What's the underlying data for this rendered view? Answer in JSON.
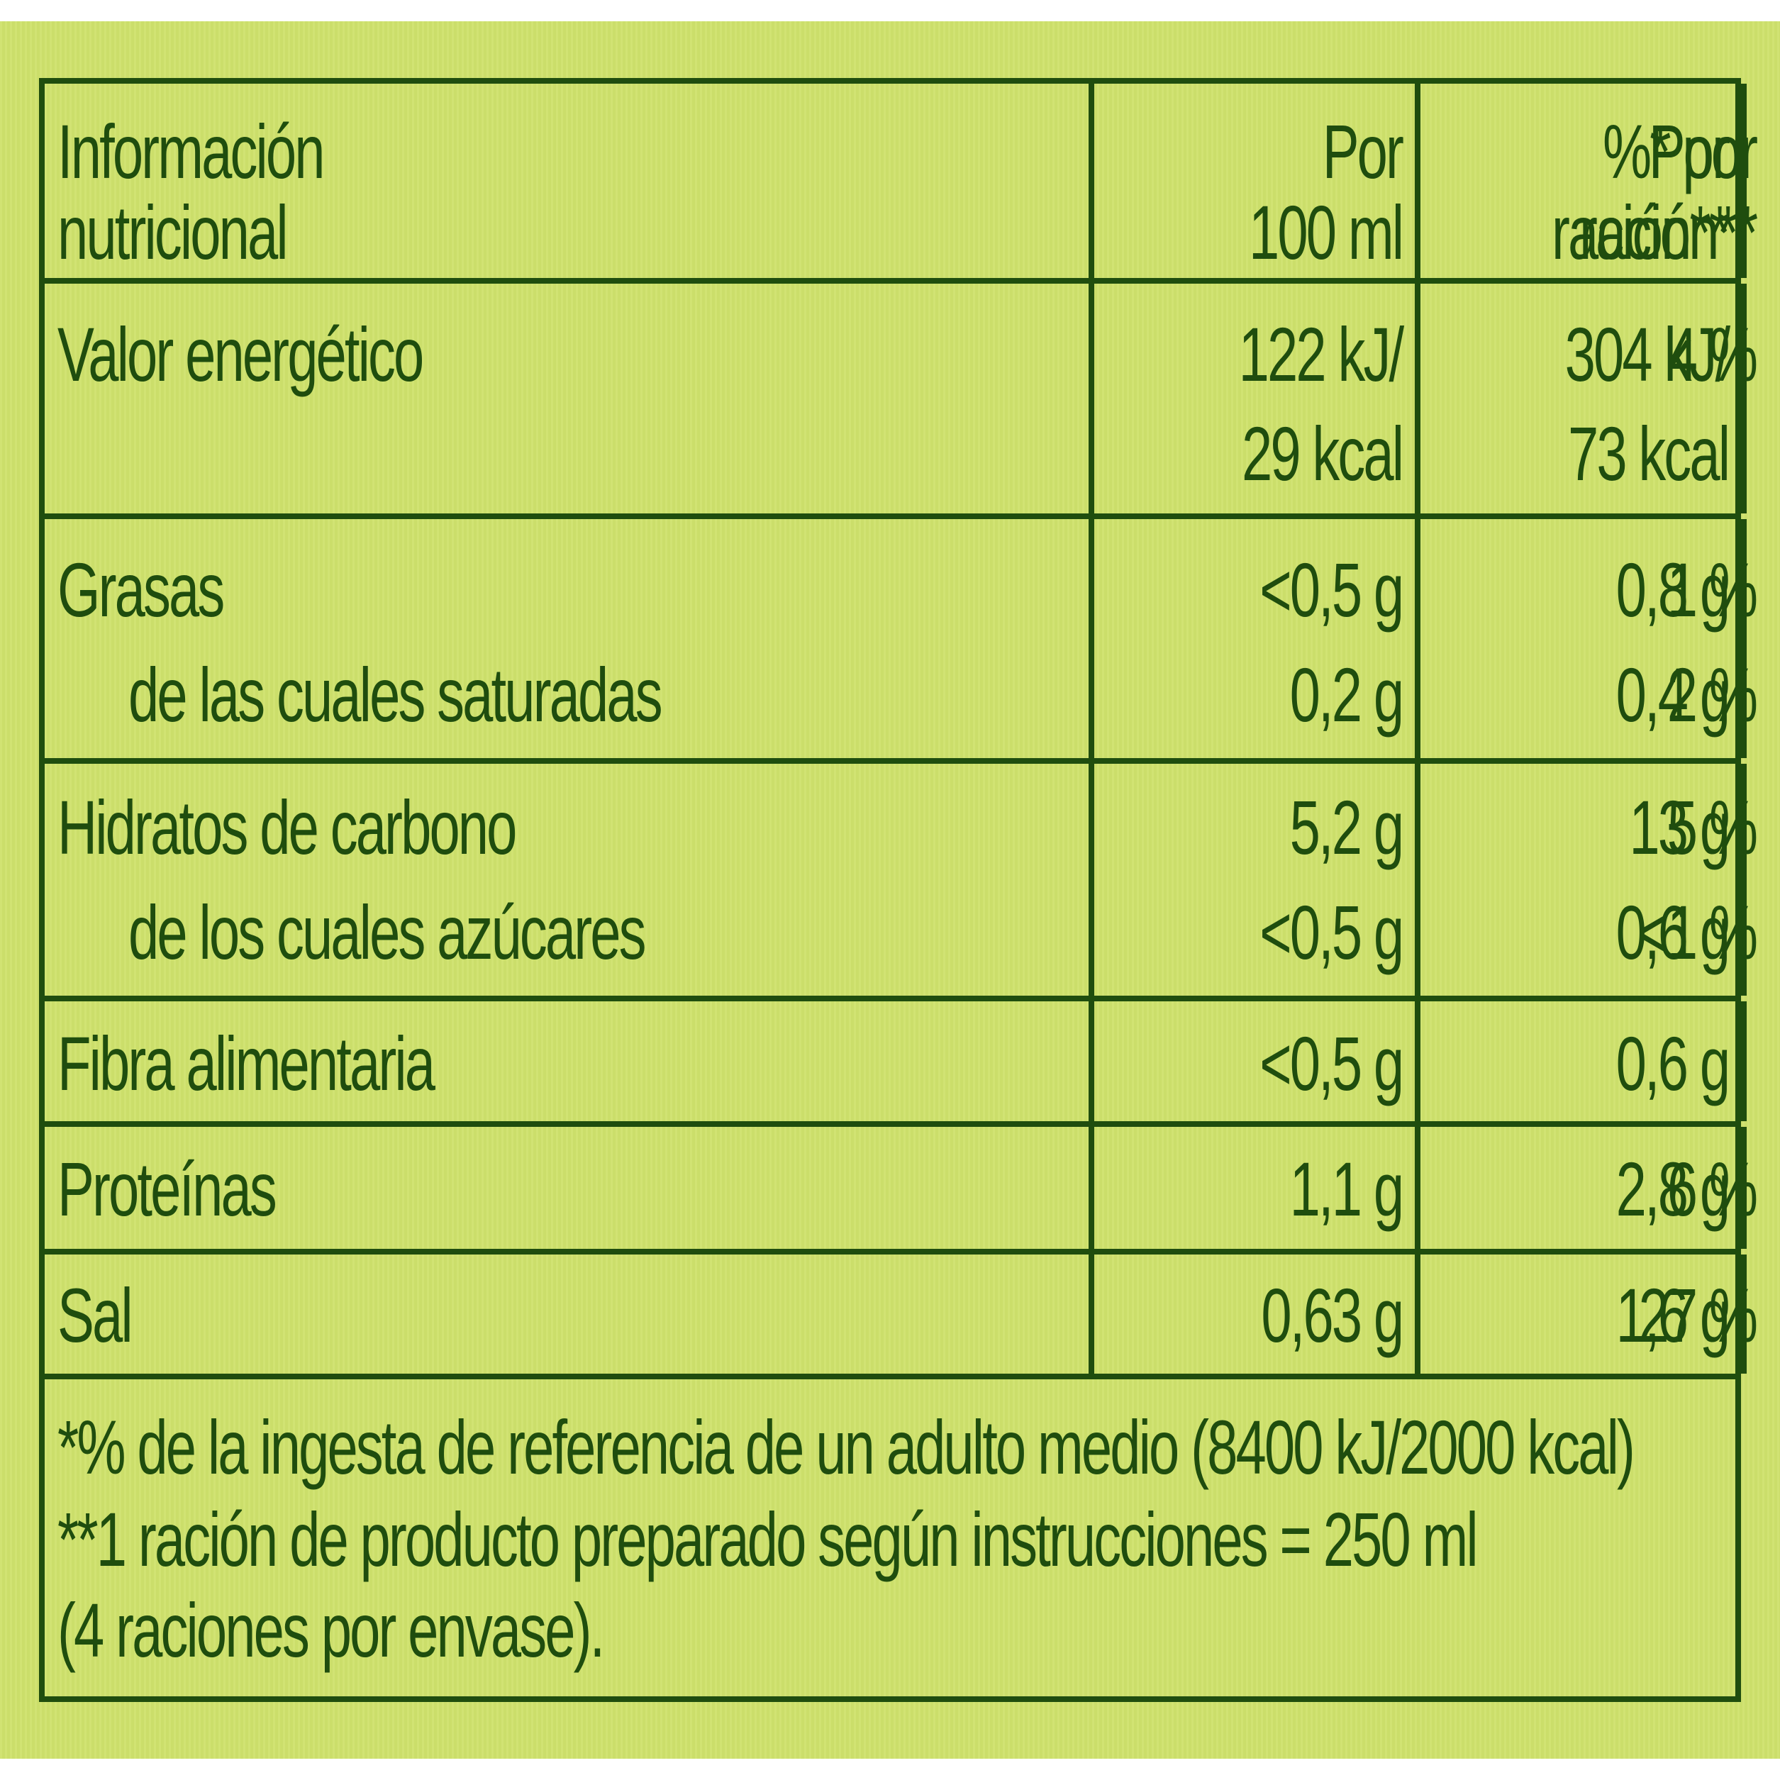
{
  "header": {
    "label_line1": "Información",
    "label_line2": "nutricional",
    "col1_line1": "Por",
    "col1_line2": "100 ml",
    "col2_line1": "Por",
    "col2_line2": "ración**",
    "col3_line1": "%* por",
    "col3_line2": "ración**"
  },
  "rows": [
    {
      "label": "Valor energético",
      "per100_line1": "122 kJ/",
      "per100_line2": "29 kcal",
      "serving_line1": "304 kJ/",
      "serving_line2": "73 kcal",
      "pct": "4 %"
    },
    {
      "label": "Grasas",
      "per100": "<0,5 g",
      "serving": "0,8 g",
      "pct": "1 %",
      "sub_label": "de las cuales saturadas",
      "sub_per100": "0,2 g",
      "sub_serving": "0,4 g",
      "sub_pct": "2 %"
    },
    {
      "label": "Hidratos de carbono",
      "per100": "5,2 g",
      "serving": "13 g",
      "pct": "5 %",
      "sub_label": "de los cuales azúcares",
      "sub_per100": "<0,5 g",
      "sub_serving": "0,6 g",
      "sub_pct": "<1 %"
    },
    {
      "label": "Fibra alimentaria",
      "per100": "<0,5 g",
      "serving": "0,6 g",
      "pct": ""
    },
    {
      "label": "Proteínas",
      "per100": "1,1 g",
      "serving": "2,8 g",
      "pct": "6 %"
    },
    {
      "label": "Sal",
      "per100": "0,63 g",
      "serving": "1,6 g",
      "pct": "27 %"
    }
  ],
  "footnotes": {
    "line1": "*% de la ingesta de referencia de un adulto medio (8400 kJ/2000 kcal)",
    "line2": "**1 ración de producto preparado según instrucciones = 250 ml",
    "line3": "(4 raciones por envase)."
  },
  "colors": {
    "background": "#cfe26c",
    "ink": "#1f4d0e"
  }
}
